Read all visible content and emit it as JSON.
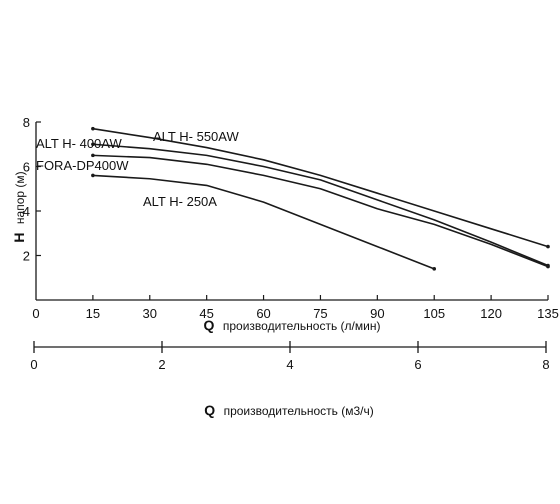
{
  "chart_data": [
    {
      "type": "line",
      "xlabel_prefix": "Q",
      "xlabel": "производительность (л/мин)",
      "ylabel_prefix": "H",
      "ylabel": "напор (м)",
      "xlim": [
        0,
        135
      ],
      "ylim": [
        0,
        8
      ],
      "x_ticks": [
        0,
        15,
        30,
        45,
        60,
        75,
        90,
        105,
        120,
        135
      ],
      "y_ticks": [
        2,
        4,
        6,
        8
      ],
      "grid": false,
      "line_color": "#1a1a1a",
      "series": [
        {
          "name": "ALT H- 550AW",
          "points": [
            [
              15,
              7.7
            ],
            [
              30,
              7.3
            ],
            [
              45,
              6.85
            ],
            [
              60,
              6.3
            ],
            [
              75,
              5.6
            ],
            [
              90,
              4.8
            ],
            [
              105,
              4.0
            ],
            [
              120,
              3.2
            ],
            [
              135,
              2.4
            ]
          ]
        },
        {
          "name": "ALT H- 400AW",
          "points": [
            [
              15,
              7.0
            ],
            [
              30,
              6.8
            ],
            [
              45,
              6.5
            ],
            [
              60,
              6.0
            ],
            [
              75,
              5.4
            ],
            [
              90,
              4.5
            ],
            [
              105,
              3.6
            ],
            [
              120,
              2.6
            ],
            [
              135,
              1.55
            ]
          ]
        },
        {
          "name": "FORA-DP400W",
          "points": [
            [
              15,
              6.5
            ],
            [
              30,
              6.4
            ],
            [
              45,
              6.1
            ],
            [
              60,
              5.6
            ],
            [
              75,
              5.0
            ],
            [
              90,
              4.1
            ],
            [
              105,
              3.4
            ],
            [
              120,
              2.5
            ],
            [
              135,
              1.5
            ]
          ]
        },
        {
          "name": "ALT H- 250A",
          "points": [
            [
              15,
              5.6
            ],
            [
              30,
              5.45
            ],
            [
              45,
              5.15
            ],
            [
              60,
              4.4
            ],
            [
              75,
              3.4
            ],
            [
              90,
              2.4
            ],
            [
              105,
              1.4
            ]
          ]
        }
      ]
    },
    {
      "type": "axis",
      "xlabel_prefix": "Q",
      "xlabel": "производительность (м3/ч)",
      "xlim": [
        0,
        8
      ],
      "x_ticks": [
        0,
        2,
        4,
        6,
        8
      ]
    }
  ]
}
